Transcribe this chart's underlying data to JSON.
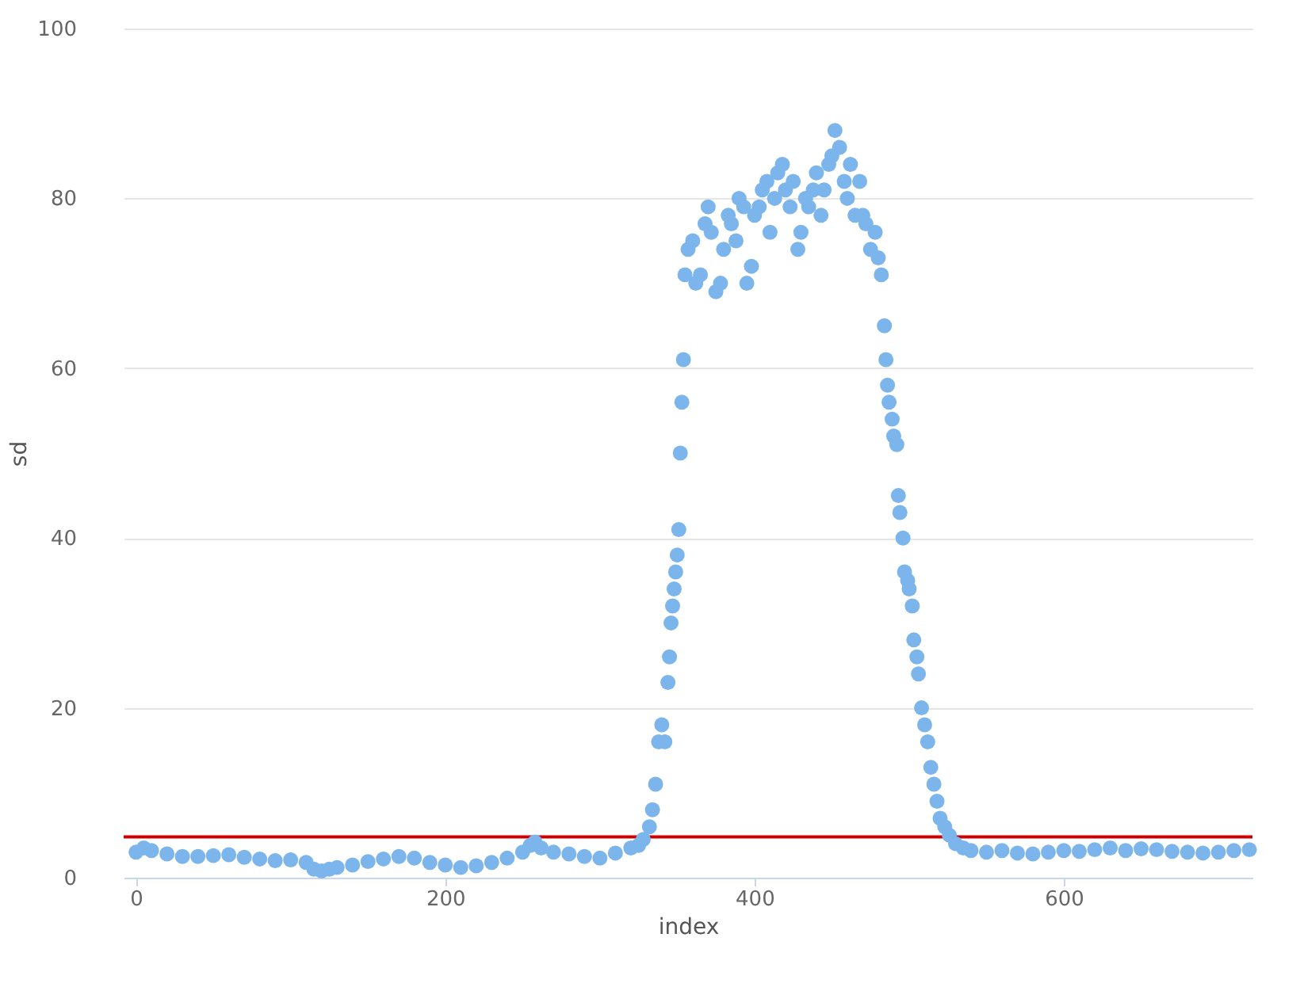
{
  "chart_data": {
    "type": "scatter",
    "xlabel": "index",
    "ylabel": "sd",
    "xlim": [
      -8,
      722
    ],
    "xticks": [
      0,
      200,
      400,
      600
    ],
    "ylim": [
      0,
      100
    ],
    "yticks": [
      0,
      20,
      40,
      60,
      80,
      100
    ],
    "grid": "y",
    "marker": "circle",
    "ref_lines": [
      {
        "axis": "y",
        "value": 4.8,
        "color": "#cc0000"
      }
    ],
    "series": [
      {
        "color": "#7cb5ec",
        "x": [
          0,
          5,
          10,
          20,
          30,
          40,
          50,
          60,
          70,
          80,
          90,
          100,
          110,
          115,
          120,
          125,
          130,
          140,
          150,
          160,
          170,
          180,
          190,
          200,
          210,
          220,
          230,
          240,
          250,
          255,
          258,
          262,
          270,
          280,
          290,
          300,
          310,
          320,
          325,
          328,
          332,
          334,
          336,
          338,
          340,
          342,
          344,
          345,
          346,
          347,
          348,
          349,
          350,
          351,
          352,
          353,
          354,
          355,
          357,
          360,
          362,
          365,
          368,
          370,
          372,
          375,
          378,
          380,
          383,
          385,
          388,
          390,
          393,
          395,
          398,
          400,
          403,
          405,
          408,
          410,
          413,
          415,
          418,
          420,
          423,
          425,
          428,
          430,
          433,
          435,
          438,
          440,
          443,
          445,
          448,
          450,
          452,
          455,
          458,
          460,
          462,
          465,
          468,
          470,
          472,
          475,
          478,
          480,
          482,
          484,
          485,
          486,
          487,
          489,
          490,
          492,
          493,
          494,
          496,
          497,
          499,
          500,
          502,
          503,
          505,
          506,
          508,
          510,
          512,
          514,
          516,
          518,
          520,
          523,
          526,
          530,
          535,
          540,
          550,
          560,
          570,
          580,
          590,
          600,
          610,
          620,
          630,
          640,
          650,
          660,
          670,
          680,
          690,
          700,
          710,
          720
        ],
        "values": [
          3,
          3.5,
          3.2,
          2.8,
          2.5,
          2.5,
          2.6,
          2.7,
          2.4,
          2.2,
          2,
          2.1,
          1.8,
          1,
          0.8,
          1,
          1.2,
          1.5,
          1.9,
          2.2,
          2.5,
          2.3,
          1.8,
          1.5,
          1.2,
          1.4,
          1.8,
          2.3,
          3,
          3.8,
          4.2,
          3.5,
          3,
          2.8,
          2.5,
          2.3,
          2.9,
          3.5,
          3.8,
          4.5,
          6,
          8,
          11,
          16,
          18,
          16,
          23,
          26,
          30,
          32,
          34,
          36,
          38,
          41,
          50,
          56,
          61,
          71,
          74,
          75,
          70,
          71,
          77,
          79,
          76,
          69,
          70,
          74,
          78,
          77,
          75,
          80,
          79,
          70,
          72,
          78,
          79,
          81,
          82,
          76,
          80,
          83,
          84,
          81,
          79,
          82,
          74,
          76,
          80,
          79,
          81,
          83,
          78,
          81,
          84,
          85,
          88,
          86,
          82,
          80,
          84,
          78,
          82,
          78,
          77,
          74,
          76,
          73,
          71,
          65,
          61,
          58,
          56,
          54,
          52,
          51,
          45,
          43,
          40,
          36,
          35,
          34,
          32,
          28,
          26,
          24,
          20,
          18,
          16,
          13,
          11,
          9,
          7,
          6,
          5,
          4,
          3.5,
          3.2,
          3,
          3.2,
          2.9,
          2.8,
          3,
          3.2,
          3.1,
          3.3,
          3.5,
          3.2,
          3.4,
          3.3,
          3.1,
          3,
          2.9,
          3,
          3.2,
          3.3
        ]
      }
    ]
  }
}
